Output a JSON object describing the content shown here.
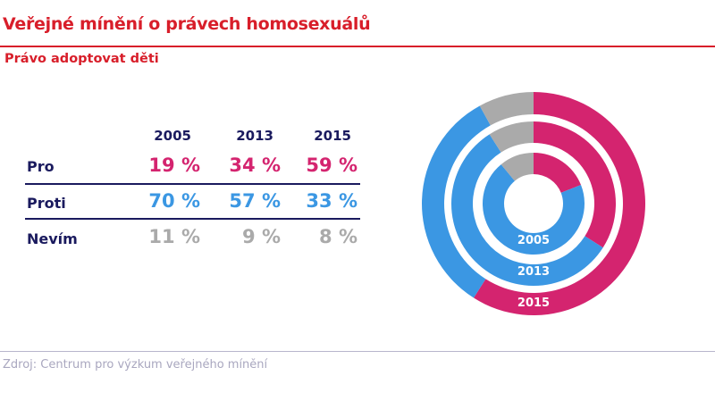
{
  "header": {
    "title": "Veřejné mínění o právech homosexuálů",
    "subtitle": "Právo adoptovat děti"
  },
  "footer": {
    "source": "Zdroj: Centrum pro výzkum veřejného mínění"
  },
  "chart_data": {
    "type": "table",
    "categories": [
      "2005",
      "2013",
      "2015"
    ],
    "series": [
      {
        "name": "Pro",
        "values": [
          19,
          34,
          59
        ],
        "labels": [
          "19 %",
          "34 %",
          "59 %"
        ],
        "color": "#d4246f"
      },
      {
        "name": "Proti",
        "values": [
          70,
          57,
          33
        ],
        "labels": [
          "70 %",
          "57 %",
          "33 %"
        ],
        "color": "#3b97e3"
      },
      {
        "name": "Nevím",
        "values": [
          11,
          9,
          8
        ],
        "labels": [
          "11 %",
          "9 %",
          "8 %"
        ],
        "color": "#aaaaaa"
      }
    ],
    "donut": {
      "type": "pie",
      "rings_inner_to_outer": [
        "2005",
        "2013",
        "2015"
      ],
      "start": "top",
      "direction": "clockwise"
    }
  },
  "colors": {
    "title": "#d81e2a",
    "text": "#1a1a5e"
  }
}
